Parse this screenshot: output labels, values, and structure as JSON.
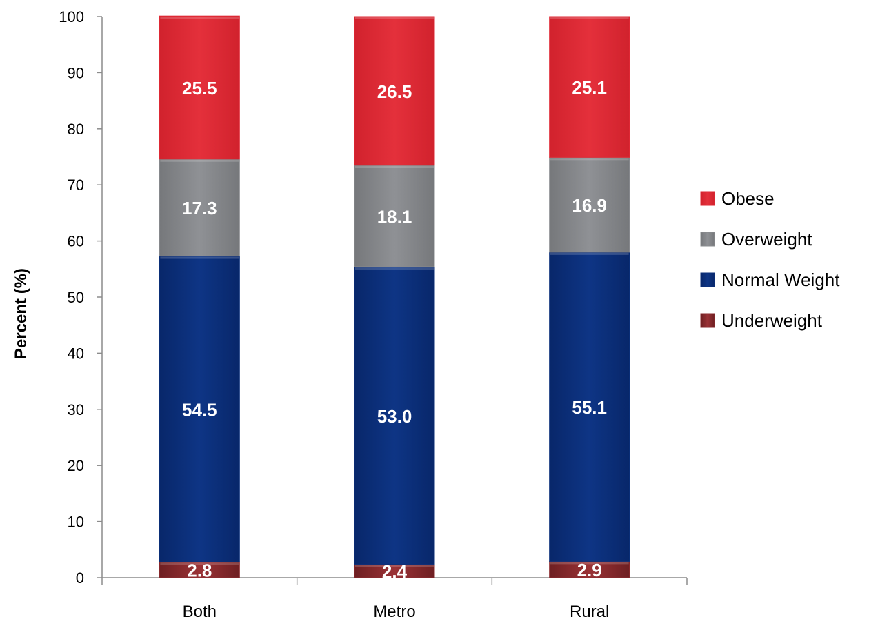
{
  "chart_data": {
    "type": "bar",
    "stacked": true,
    "categories": [
      "Both",
      "Metro",
      "Rural"
    ],
    "series": [
      {
        "name": "Underweight",
        "color": "#8b2b2f",
        "values": [
          2.8,
          2.4,
          2.9
        ]
      },
      {
        "name": "Normal Weight",
        "color": "#0b2f7a",
        "values": [
          54.5,
          53.0,
          55.1
        ]
      },
      {
        "name": "Overweight",
        "color": "#8a8c8f",
        "values": [
          17.3,
          18.1,
          16.9
        ]
      },
      {
        "name": "Obese",
        "color": "#e02a36",
        "values": [
          25.5,
          26.5,
          25.1
        ]
      }
    ],
    "value_labels": [
      [
        "2.8",
        "2.4",
        "2.9"
      ],
      [
        "54.5",
        "53.0",
        "55.1"
      ],
      [
        "17.3",
        "18.1",
        "16.9"
      ],
      [
        "25.5",
        "26.5",
        "25.1"
      ]
    ],
    "title": "",
    "xlabel": "",
    "ylabel": "Percent (%)",
    "ylim": [
      0,
      100
    ],
    "yticks": [
      0,
      10,
      20,
      30,
      40,
      50,
      60,
      70,
      80,
      90,
      100
    ],
    "grid": false,
    "legend_position": "right",
    "legend_order": [
      "Obese",
      "Overweight",
      "Normal Weight",
      "Underweight"
    ]
  }
}
